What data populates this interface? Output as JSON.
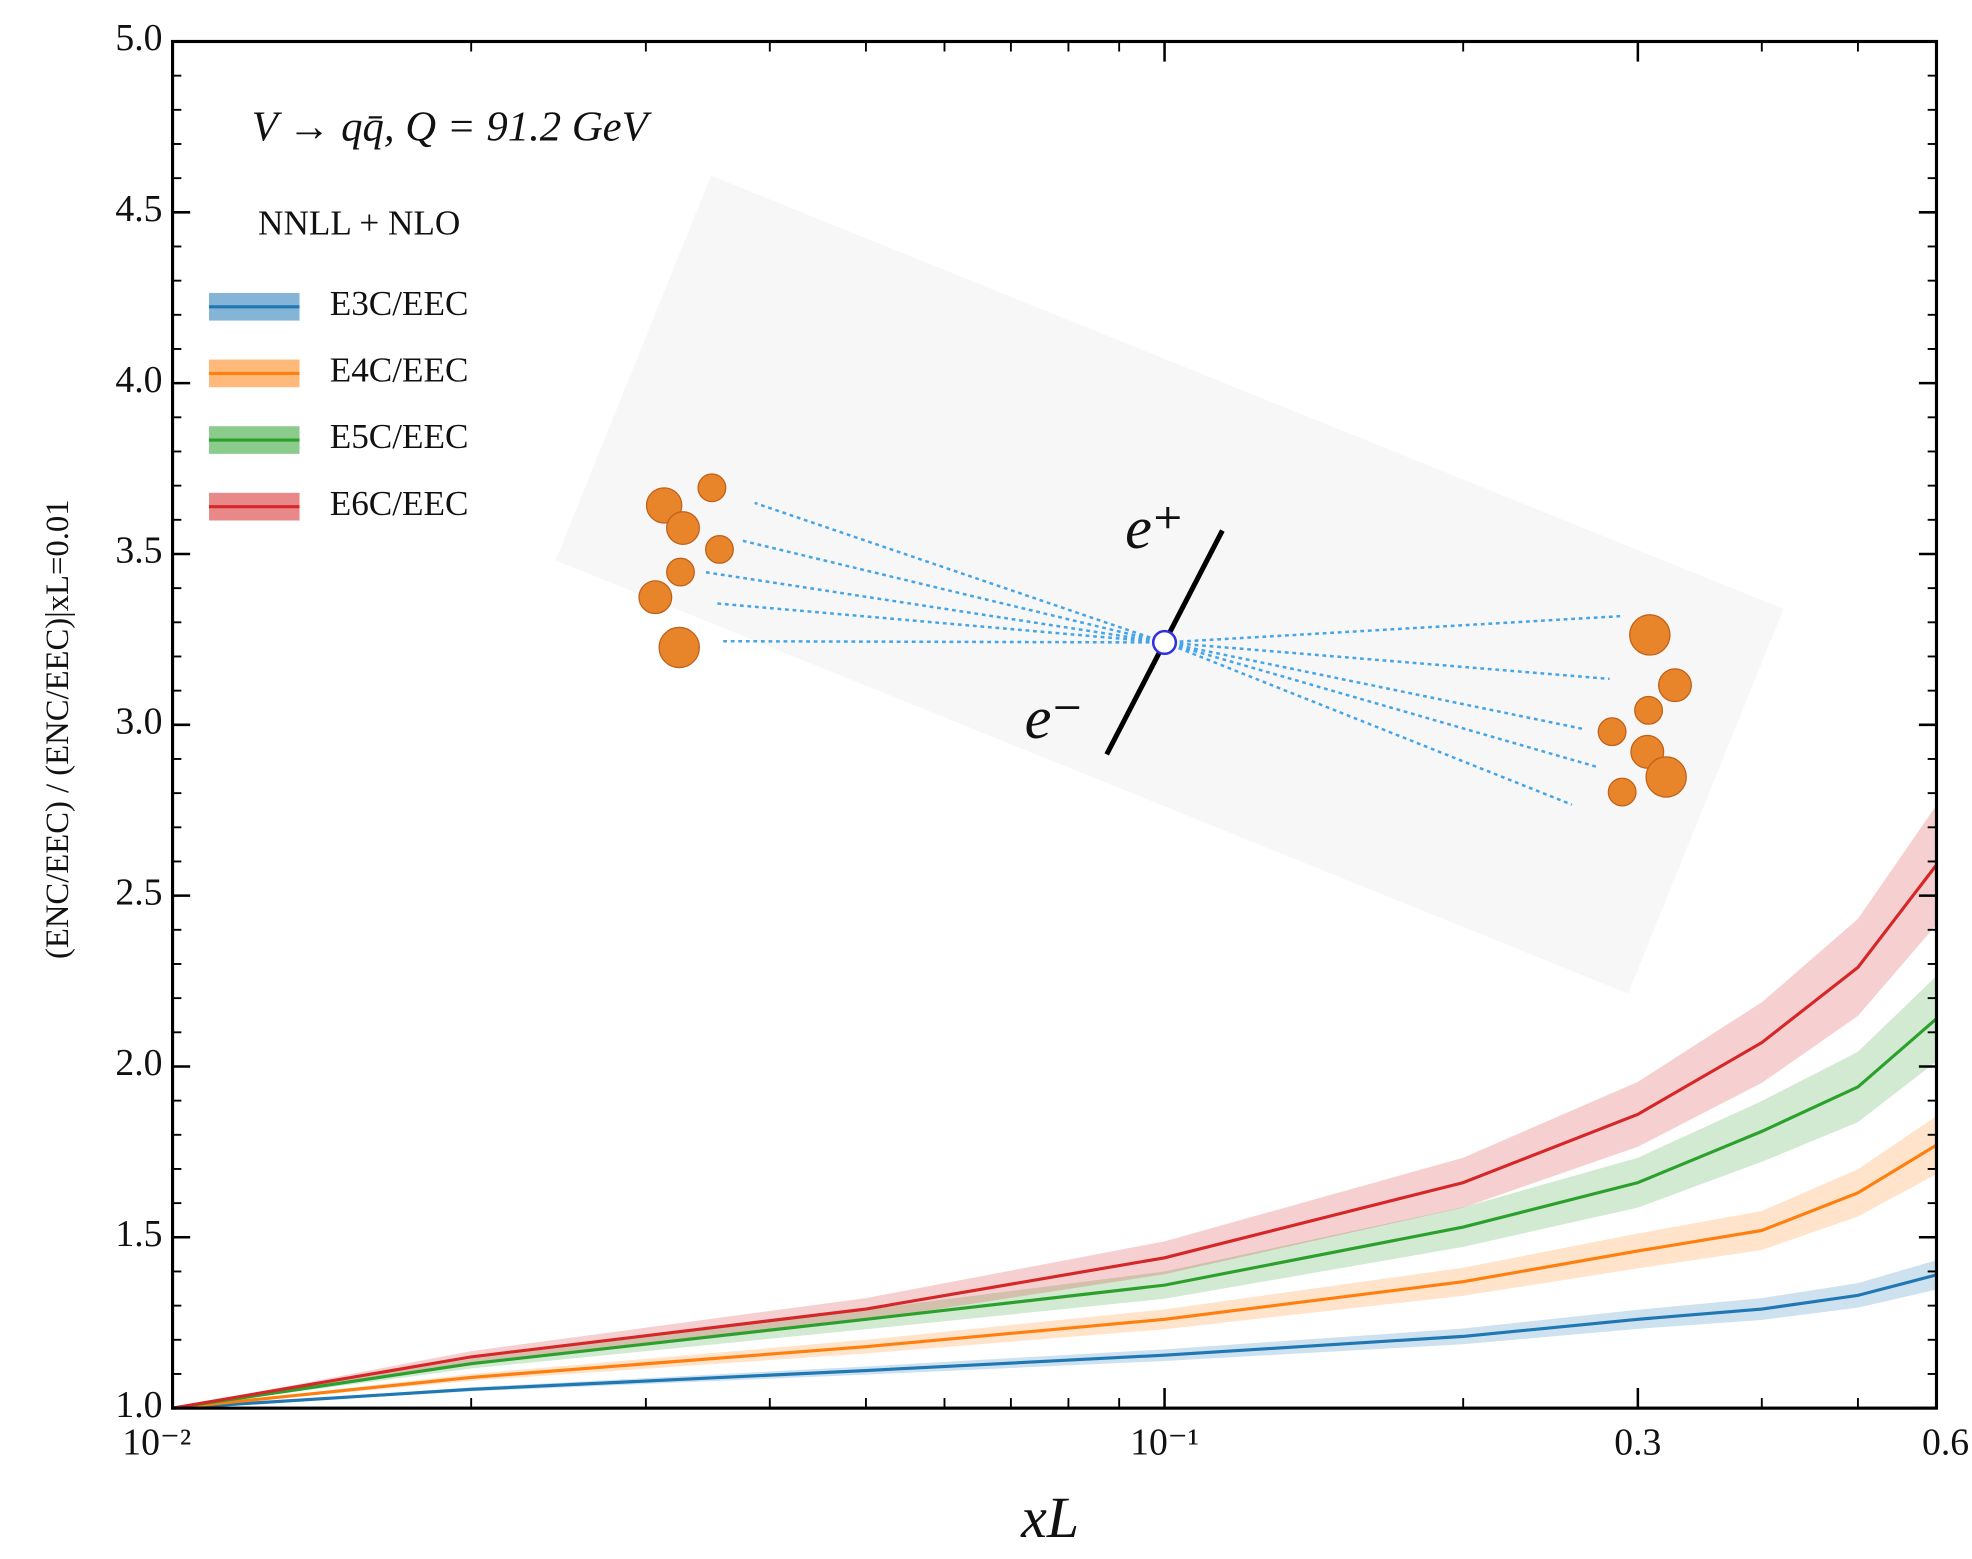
{
  "chart_data": {
    "type": "line",
    "annotations": [
      "V → qq̄,  Q = 91.2 GeV",
      "NNLL + NLO"
    ],
    "xlabel": "xL",
    "ylabel": "(ENC/EEC) / (ENC/EEC)|xL=0.01",
    "illustration_labels": [
      "e⁺",
      "e⁻"
    ],
    "log_x": true,
    "xlim": [
      0.01,
      0.6
    ],
    "xticks": [
      {
        "value": 0.01,
        "label": "10⁻²"
      },
      {
        "value": 0.1,
        "label": "10⁻¹"
      },
      0.3,
      0.6
    ],
    "xminorticks": [
      0.02,
      0.03,
      0.04,
      0.05,
      0.06,
      0.07,
      0.08,
      0.09,
      0.2,
      0.4,
      0.5
    ],
    "ylim": [
      1,
      5
    ],
    "yticks": [
      {
        "value": 1,
        "label": "1.0"
      },
      1.5,
      {
        "value": 2,
        "label": "2.0"
      },
      2.5,
      {
        "value": 3,
        "label": "3.0"
      },
      3.5,
      {
        "value": 4,
        "label": "4.0"
      },
      4.5,
      {
        "value": 5,
        "label": "5.0"
      }
    ],
    "yminor_step": 0.1,
    "legend": "upper left",
    "x": [
      0.01,
      0.02,
      0.05,
      0.1,
      0.2,
      0.3,
      0.4,
      0.5,
      0.6
    ],
    "series": [
      {
        "name": "E3C/EEC",
        "color": "#1f77b4",
        "values": [
          1,
          1.055,
          1.11,
          1.155,
          1.21,
          1.26,
          1.29,
          1.33,
          1.39
        ],
        "lower": [
          1,
          1.049,
          1.098,
          1.138,
          1.187,
          1.232,
          1.258,
          1.294,
          1.347
        ],
        "upper": [
          1,
          1.061,
          1.122,
          1.172,
          1.233,
          1.288,
          1.322,
          1.366,
          1.433
        ]
      },
      {
        "name": "E4C/EEC",
        "color": "#ff7f0e",
        "values": [
          1,
          1.09,
          1.18,
          1.26,
          1.37,
          1.46,
          1.52,
          1.63,
          1.77
        ],
        "lower": [
          1,
          1.08,
          1.16,
          1.231,
          1.329,
          1.409,
          1.463,
          1.561,
          1.685
        ],
        "upper": [
          1,
          1.1,
          1.2,
          1.289,
          1.411,
          1.511,
          1.577,
          1.699,
          1.855
        ]
      },
      {
        "name": "E5C/EEC",
        "color": "#2ca02c",
        "values": [
          1,
          1.13,
          1.26,
          1.36,
          1.53,
          1.66,
          1.81,
          1.94,
          2.14
        ],
        "lower": [
          1,
          1.116,
          1.231,
          1.32,
          1.472,
          1.587,
          1.721,
          1.837,
          2.015
        ],
        "upper": [
          1,
          1.144,
          1.289,
          1.4,
          1.588,
          1.733,
          1.899,
          2.043,
          2.265
        ]
      },
      {
        "name": "E6C/EEC",
        "color": "#d62728",
        "values": [
          1,
          1.15,
          1.29,
          1.44,
          1.66,
          1.86,
          2.07,
          2.29,
          2.59
        ],
        "lower": [
          1,
          1.133,
          1.258,
          1.392,
          1.587,
          1.765,
          1.952,
          2.148,
          2.415
        ],
        "upper": [
          1,
          1.167,
          1.322,
          1.488,
          1.733,
          1.955,
          2.188,
          2.432,
          2.765
        ]
      }
    ]
  }
}
